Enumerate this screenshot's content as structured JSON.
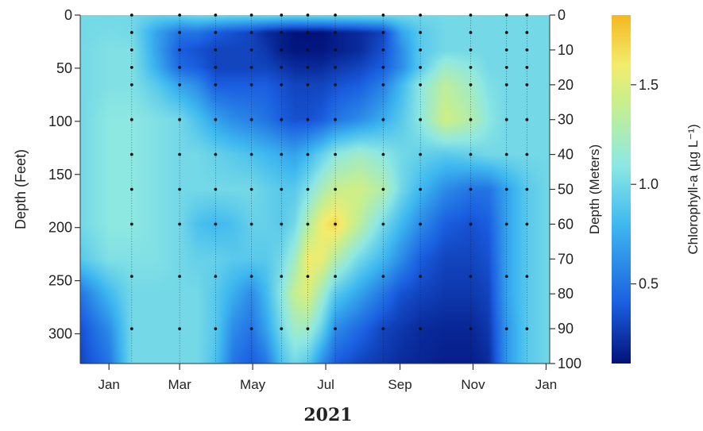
{
  "chart_data": {
    "type": "heatmap",
    "title": "",
    "xlabel": "",
    "year": "2021",
    "x_ticks": [
      {
        "label": "Jan",
        "doy": 15
      },
      {
        "label": "Mar",
        "doy": 74
      },
      {
        "label": "May",
        "doy": 135
      },
      {
        "label": "Jul",
        "doy": 196
      },
      {
        "label": "Sep",
        "doy": 258
      },
      {
        "label": "Nov",
        "doy": 319
      },
      {
        "label": "Jan",
        "doy": 380
      }
    ],
    "xlim_doy": [
      -9,
      383
    ],
    "y_left": {
      "label": "Depth (Feet)",
      "ticks": [
        0,
        50,
        100,
        150,
        200,
        250,
        300
      ],
      "range": [
        0,
        328
      ]
    },
    "y_right": {
      "label": "Depth (Meters)",
      "ticks": [
        0,
        10,
        20,
        30,
        40,
        50,
        60,
        70,
        80,
        90,
        100
      ],
      "range": [
        0,
        100
      ]
    },
    "colorbar": {
      "label": "Chlorophyll-a (µg L⁻¹)",
      "range": [
        0.1,
        1.85
      ],
      "ticks": [
        0.5,
        1.0,
        1.5
      ],
      "tick_labels": [
        "0.5",
        "1.0",
        "1.5"
      ],
      "stops": [
        {
          "v": 0.1,
          "color": "#02127a"
        },
        {
          "v": 0.4,
          "color": "#1a5ee0"
        },
        {
          "v": 0.8,
          "color": "#3fb9f0"
        },
        {
          "v": 1.1,
          "color": "#8ee8e2"
        },
        {
          "v": 1.4,
          "color": "#c6ef8f"
        },
        {
          "v": 1.6,
          "color": "#f3ec6c"
        },
        {
          "v": 1.85,
          "color": "#f5b820"
        }
      ]
    },
    "sampling_doys": [
      34,
      74,
      104,
      134,
      159,
      181,
      204,
      244,
      275,
      317,
      347,
      364
    ],
    "sampling_depths_m": [
      0,
      5,
      10,
      15,
      20,
      30,
      40,
      50,
      60,
      75,
      90
    ],
    "grid_depths_m": [
      0,
      5,
      10,
      15,
      20,
      30,
      40,
      50,
      60,
      70,
      80,
      90,
      100
    ],
    "grid_doys": [
      -9,
      15,
      34,
      55,
      74,
      89,
      104,
      119,
      134,
      146,
      159,
      170,
      181,
      193,
      204,
      224,
      244,
      259,
      275,
      296,
      317,
      332,
      347,
      364,
      383
    ],
    "values": [
      [
        1.0,
        1.0,
        1.0,
        0.95,
        0.95,
        1.0,
        1.0,
        0.98,
        0.98,
        1.0,
        0.98,
        0.98,
        1.0,
        1.0,
        1.0,
        1.0,
        1.0,
        1.0,
        1.0,
        1.0,
        1.0,
        1.0,
        1.0,
        1.0,
        1.0
      ],
      [
        1.0,
        1.02,
        1.0,
        0.7,
        0.5,
        0.5,
        0.4,
        0.35,
        0.3,
        0.2,
        0.15,
        0.1,
        0.1,
        0.1,
        0.15,
        0.2,
        0.3,
        0.7,
        0.9,
        1.0,
        1.0,
        1.0,
        1.0,
        1.0,
        1.0
      ],
      [
        1.0,
        1.05,
        1.05,
        0.7,
        0.4,
        0.35,
        0.3,
        0.3,
        0.3,
        0.25,
        0.15,
        0.12,
        0.12,
        0.12,
        0.15,
        0.2,
        0.35,
        0.6,
        0.9,
        1.0,
        1.0,
        1.0,
        1.0,
        1.0,
        1.0
      ],
      [
        1.0,
        1.05,
        1.05,
        0.75,
        0.45,
        0.4,
        0.3,
        0.3,
        0.3,
        0.3,
        0.25,
        0.2,
        0.2,
        0.2,
        0.25,
        0.3,
        0.4,
        0.6,
        0.9,
        1.2,
        1.1,
        1.0,
        1.0,
        1.0,
        1.0
      ],
      [
        1.0,
        1.05,
        1.05,
        0.9,
        0.7,
        0.6,
        0.4,
        0.4,
        0.4,
        0.4,
        0.35,
        0.3,
        0.3,
        0.3,
        0.35,
        0.4,
        0.55,
        0.8,
        1.1,
        1.35,
        1.2,
        1.05,
        1.0,
        1.0,
        1.0
      ],
      [
        1.0,
        1.1,
        1.1,
        1.05,
        1.0,
        0.85,
        0.7,
        0.6,
        0.55,
        0.5,
        0.4,
        0.35,
        0.35,
        0.4,
        0.5,
        0.6,
        0.75,
        0.9,
        1.1,
        1.45,
        1.3,
        1.1,
        1.0,
        1.0,
        1.0
      ],
      [
        1.0,
        1.1,
        1.1,
        1.05,
        1.0,
        1.0,
        0.95,
        0.9,
        0.85,
        0.8,
        0.75,
        0.7,
        0.8,
        0.95,
        1.1,
        1.2,
        1.1,
        1.0,
        0.95,
        0.9,
        0.95,
        1.0,
        1.0,
        1.0,
        1.0
      ],
      [
        1.0,
        1.1,
        1.1,
        1.05,
        1.0,
        1.0,
        1.0,
        1.0,
        1.0,
        0.95,
        0.9,
        0.9,
        1.05,
        1.25,
        1.4,
        1.45,
        1.3,
        1.0,
        0.8,
        0.6,
        0.5,
        0.5,
        0.7,
        0.9,
        1.0
      ],
      [
        1.0,
        1.1,
        1.1,
        1.05,
        1.0,
        0.85,
        0.8,
        0.85,
        0.95,
        0.95,
        0.9,
        1.0,
        1.3,
        1.6,
        1.7,
        1.35,
        1.0,
        0.8,
        0.6,
        0.4,
        0.35,
        0.4,
        0.7,
        0.9,
        1.0
      ],
      [
        0.9,
        1.05,
        1.05,
        1.05,
        1.0,
        0.95,
        0.95,
        0.9,
        0.9,
        0.9,
        1.0,
        1.2,
        1.6,
        1.55,
        1.3,
        1.0,
        0.8,
        0.6,
        0.4,
        0.3,
        0.3,
        0.35,
        0.7,
        0.9,
        1.0
      ],
      [
        0.5,
        0.8,
        1.0,
        1.0,
        1.0,
        1.0,
        0.9,
        0.75,
        0.6,
        0.8,
        1.1,
        1.4,
        1.5,
        1.2,
        0.9,
        0.7,
        0.5,
        0.35,
        0.3,
        0.25,
        0.25,
        0.3,
        0.7,
        0.9,
        1.0
      ],
      [
        0.35,
        0.6,
        1.0,
        1.0,
        1.0,
        1.0,
        0.9,
        0.6,
        0.5,
        0.7,
        1.0,
        1.2,
        1.2,
        0.95,
        0.6,
        0.45,
        0.3,
        0.25,
        0.2,
        0.18,
        0.18,
        0.25,
        0.65,
        0.9,
        1.0
      ],
      [
        0.3,
        0.5,
        1.0,
        1.0,
        1.0,
        1.0,
        0.85,
        0.5,
        0.4,
        0.5,
        0.85,
        1.0,
        0.9,
        0.6,
        0.4,
        0.3,
        0.25,
        0.2,
        0.18,
        0.15,
        0.15,
        0.2,
        0.65,
        0.9,
        1.0
      ]
    ]
  }
}
